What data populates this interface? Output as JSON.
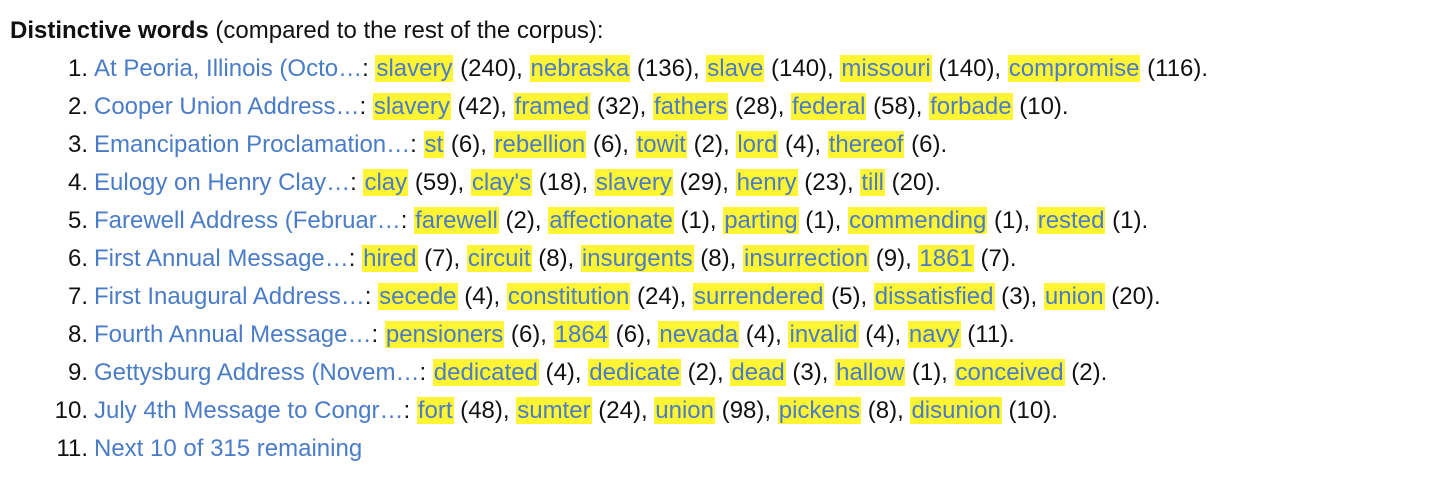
{
  "heading": {
    "bold": "Distinctive words",
    "rest": " (compared to the rest of the corpus):"
  },
  "documents": [
    {
      "number": "1.",
      "title": "At Peoria, Illinois (Octo…",
      "words": [
        {
          "word": "slavery",
          "count": "240"
        },
        {
          "word": "nebraska",
          "count": "136"
        },
        {
          "word": "slave",
          "count": "140"
        },
        {
          "word": "missouri",
          "count": "140"
        },
        {
          "word": "compromise",
          "count": "116"
        }
      ]
    },
    {
      "number": "2.",
      "title": "Cooper Union Address…",
      "words": [
        {
          "word": "slavery",
          "count": "42"
        },
        {
          "word": "framed",
          "count": "32"
        },
        {
          "word": "fathers",
          "count": "28"
        },
        {
          "word": "federal",
          "count": "58"
        },
        {
          "word": "forbade",
          "count": "10"
        }
      ]
    },
    {
      "number": "3.",
      "title": "Emancipation Proclamation…",
      "words": [
        {
          "word": "st",
          "count": "6"
        },
        {
          "word": "rebellion",
          "count": "6"
        },
        {
          "word": "towit",
          "count": "2"
        },
        {
          "word": "lord",
          "count": "4"
        },
        {
          "word": "thereof",
          "count": "6"
        }
      ]
    },
    {
      "number": "4.",
      "title": "Eulogy on Henry Clay…",
      "words": [
        {
          "word": "clay",
          "count": "59"
        },
        {
          "word": "clay's",
          "count": "18"
        },
        {
          "word": "slavery",
          "count": "29"
        },
        {
          "word": "henry",
          "count": "23"
        },
        {
          "word": "till",
          "count": "20"
        }
      ]
    },
    {
      "number": "5.",
      "title": "Farewell Address (Februar…",
      "words": [
        {
          "word": "farewell",
          "count": "2"
        },
        {
          "word": "affectionate",
          "count": "1"
        },
        {
          "word": "parting",
          "count": "1"
        },
        {
          "word": "commending",
          "count": "1"
        },
        {
          "word": "rested",
          "count": "1"
        }
      ]
    },
    {
      "number": "6.",
      "title": "First Annual Message…",
      "words": [
        {
          "word": "hired",
          "count": "7"
        },
        {
          "word": "circuit",
          "count": "8"
        },
        {
          "word": "insurgents",
          "count": "8"
        },
        {
          "word": "insurrection",
          "count": "9"
        },
        {
          "word": "1861",
          "count": "7"
        }
      ]
    },
    {
      "number": "7.",
      "title": "First Inaugural Address…",
      "words": [
        {
          "word": "secede",
          "count": "4"
        },
        {
          "word": "constitution",
          "count": "24"
        },
        {
          "word": "surrendered",
          "count": "5"
        },
        {
          "word": "dissatisfied",
          "count": "3"
        },
        {
          "word": "union",
          "count": "20"
        }
      ]
    },
    {
      "number": "8.",
      "title": "Fourth Annual Message…",
      "words": [
        {
          "word": "pensioners",
          "count": "6"
        },
        {
          "word": "1864",
          "count": "6"
        },
        {
          "word": "nevada",
          "count": "4"
        },
        {
          "word": "invalid",
          "count": "4"
        },
        {
          "word": "navy",
          "count": "11"
        }
      ]
    },
    {
      "number": "9.",
      "title": "Gettysburg Address (Novem…",
      "words": [
        {
          "word": "dedicated",
          "count": "4"
        },
        {
          "word": "dedicate",
          "count": "2"
        },
        {
          "word": "dead",
          "count": "3"
        },
        {
          "word": "hallow",
          "count": "1"
        },
        {
          "word": "conceived",
          "count": "2"
        }
      ]
    },
    {
      "number": "10.",
      "title": "July 4th Message to Congr…",
      "words": [
        {
          "word": "fort",
          "count": "48"
        },
        {
          "word": "sumter",
          "count": "24"
        },
        {
          "word": "union",
          "count": "98"
        },
        {
          "word": "pickens",
          "count": "8"
        },
        {
          "word": "disunion",
          "count": "10"
        }
      ]
    }
  ],
  "next": {
    "number": "11.",
    "label": "Next 10 of 315 remaining"
  },
  "colors": {
    "link": "#4a7cc7",
    "highlight": "#fff533",
    "text": "#111111"
  }
}
